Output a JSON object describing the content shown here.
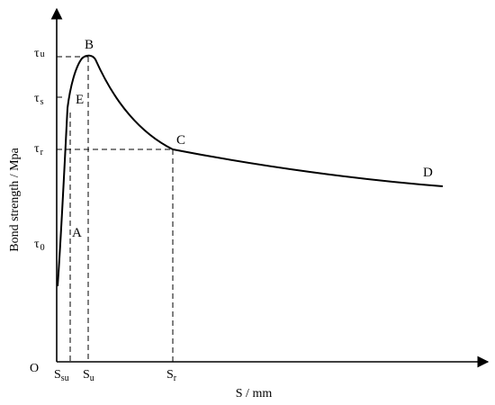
{
  "chart_data": {
    "type": "line",
    "title": "",
    "xlabel": "S / mm",
    "ylabel": "Bond strength / Mpa",
    "origin_label": "O",
    "x_ticks": [
      {
        "id": "ssu",
        "main": "S",
        "sub": "su"
      },
      {
        "id": "su",
        "main": "S",
        "sub": "u"
      },
      {
        "id": "sr",
        "main": "S",
        "sub": "r"
      }
    ],
    "y_ticks": [
      {
        "id": "tu",
        "main": "τ",
        "sub": "u"
      },
      {
        "id": "ts",
        "main": "τ",
        "sub": "s"
      },
      {
        "id": "tr",
        "main": "τ",
        "sub": "r"
      },
      {
        "id": "t0",
        "main": "τ",
        "sub": "0"
      }
    ],
    "point_labels": [
      "A",
      "E",
      "B",
      "C",
      "D"
    ],
    "guides": [
      "Ssu",
      "Su-τu",
      "Sr-τr",
      "τs"
    ],
    "grid": false,
    "legend": "none"
  }
}
